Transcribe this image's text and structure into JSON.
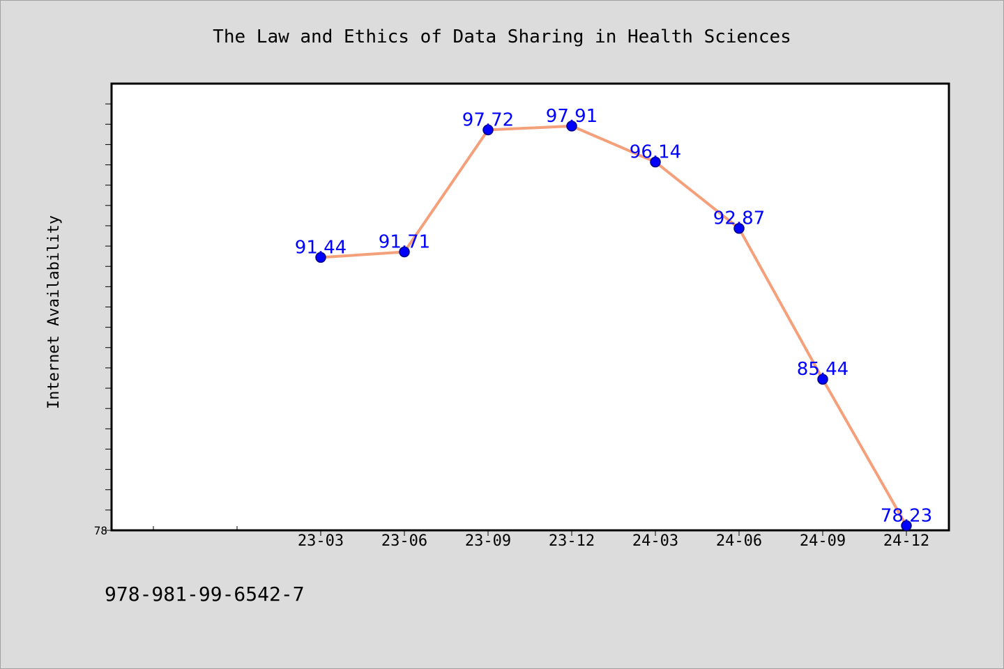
{
  "chart_data": {
    "type": "line",
    "title": "The Law and Ethics of Data Sharing in Health Sciences",
    "xlabel": "",
    "ylabel": "Internet Availability",
    "categories": [
      "23-03",
      "23-06",
      "23-09",
      "23-12",
      "24-03",
      "24-06",
      "24-09",
      "24-12"
    ],
    "series": [
      {
        "values": [
          91.44,
          91.71,
          97.72,
          97.91,
          96.14,
          92.87,
          85.44,
          78.23
        ],
        "labels": [
          "91.44",
          "91.71",
          "97.72",
          "97.91",
          "96.14",
          "92.87",
          "85.44",
          "78.23"
        ]
      }
    ],
    "ylim": [
      78,
      100
    ],
    "ytick_labels": [
      "78"
    ],
    "grid": false,
    "legend": "none",
    "colors": {
      "line": "#f4a07a",
      "marker": "#0000ff",
      "marker_edge": "#000080",
      "data_label": "#0000ff",
      "plot_background": "#ffffff",
      "figure_background": "#dcdcdc"
    }
  },
  "footer": {
    "isbn": "978-981-99-6542-7"
  }
}
